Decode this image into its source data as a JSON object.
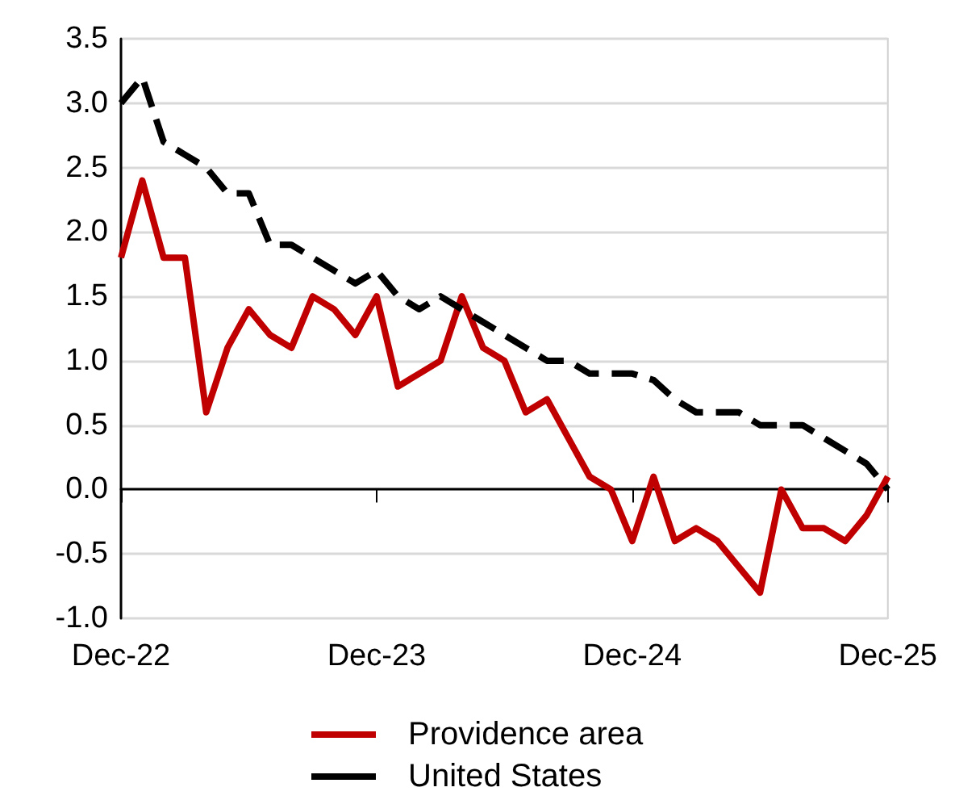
{
  "chart_data": {
    "type": "line",
    "categories": [
      "Dec-22",
      null,
      null,
      null,
      null,
      null,
      null,
      null,
      null,
      null,
      null,
      null,
      "Dec-23",
      null,
      null,
      null,
      null,
      null,
      null,
      null,
      null,
      null,
      null,
      null,
      "Dec-24",
      null,
      null,
      null,
      null,
      null,
      null,
      null,
      null,
      null,
      null,
      null,
      "Dec-25"
    ],
    "series": [
      {
        "name": "Providence area",
        "color": "#c00000",
        "line_style": "solid",
        "values": [
          1.8,
          2.4,
          1.8,
          1.8,
          0.6,
          1.1,
          1.4,
          1.2,
          1.1,
          1.5,
          1.4,
          1.2,
          1.5,
          0.8,
          0.9,
          1.0,
          1.5,
          1.1,
          1.0,
          0.6,
          0.7,
          0.4,
          0.1,
          0.0,
          -0.4,
          0.1,
          -0.4,
          -0.3,
          -0.4,
          -0.6,
          -0.8,
          0.0,
          -0.3,
          -0.3,
          -0.4,
          -0.2,
          0.1
        ]
      },
      {
        "name": "United States",
        "color": "#000000",
        "line_style": "dashed",
        "values": [
          3.0,
          3.2,
          2.7,
          2.6,
          2.5,
          2.3,
          2.3,
          1.9,
          1.9,
          1.8,
          1.7,
          1.6,
          1.7,
          1.5,
          1.4,
          1.5,
          1.4,
          1.3,
          1.2,
          1.1,
          1.0,
          1.0,
          0.9,
          0.9,
          0.9,
          0.85,
          0.7,
          0.6,
          0.6,
          0.6,
          0.5,
          0.5,
          0.5,
          0.4,
          0.3,
          0.2,
          0.0
        ]
      }
    ],
    "ylim": [
      -1.0,
      3.5
    ],
    "yticks": [
      {
        "value": -1,
        "label": "-1.0"
      },
      {
        "value": -0.5,
        "label": "-0.5"
      },
      {
        "value": 0,
        "label": "0.0"
      },
      {
        "value": 0.5,
        "label": "0.5"
      },
      {
        "value": 1,
        "label": "1.0"
      },
      {
        "value": 1.5,
        "label": "1.5"
      },
      {
        "value": 2,
        "label": "2.0"
      },
      {
        "value": 2.5,
        "label": "2.5"
      },
      {
        "value": 3,
        "label": "3.0"
      },
      {
        "value": 3.5,
        "label": "3.5"
      }
    ],
    "grid": "y",
    "legend": "bottom",
    "marker": "none"
  }
}
